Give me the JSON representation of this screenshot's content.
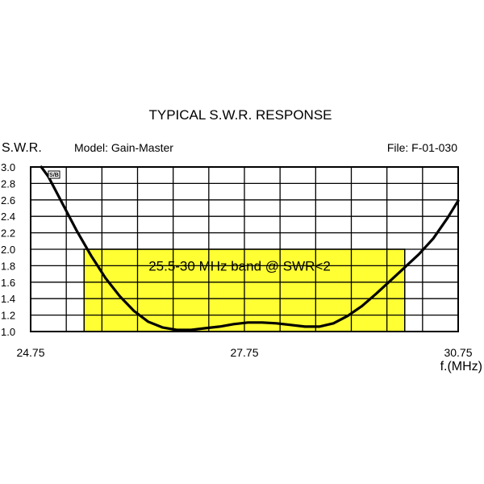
{
  "chart_data": {
    "type": "line",
    "title": "TYPICAL S.W.R. RESPONSE",
    "ylabel": "S.W.R.",
    "xlabel": "f.(MHz)",
    "model_label": "Model:  Gain-Master",
    "file_label": "File:  F-01-030",
    "logo_text": "S/B",
    "xlim": [
      24.75,
      30.75
    ],
    "ylim": [
      1.0,
      3.0
    ],
    "x_ticks": [
      "24.75",
      "27.75",
      "30.75"
    ],
    "y_ticks": [
      "1.0",
      "1.2",
      "1.4",
      "1.6",
      "1.8",
      "2.0",
      "2.2",
      "2.4",
      "2.6",
      "2.8",
      "3.0"
    ],
    "grid": true,
    "highlight": {
      "label": "25.5-30 MHz band @ SWR<2",
      "x_range": [
        25.5,
        30.0
      ],
      "y_range": [
        1.0,
        2.0
      ],
      "color": "#ffff33"
    },
    "series": [
      {
        "color": "#000000",
        "x": [
          24.9,
          25.0,
          25.2,
          25.4,
          25.6,
          25.8,
          26.0,
          26.2,
          26.4,
          26.6,
          26.8,
          27.0,
          27.2,
          27.4,
          27.6,
          27.8,
          28.0,
          28.2,
          28.4,
          28.6,
          28.8,
          29.0,
          29.2,
          29.4,
          29.6,
          29.8,
          30.0,
          30.2,
          30.4,
          30.6,
          30.75
        ],
        "y": [
          3.0,
          2.88,
          2.55,
          2.22,
          1.92,
          1.65,
          1.43,
          1.25,
          1.12,
          1.05,
          1.02,
          1.02,
          1.04,
          1.06,
          1.09,
          1.11,
          1.11,
          1.1,
          1.08,
          1.06,
          1.06,
          1.1,
          1.19,
          1.31,
          1.46,
          1.62,
          1.78,
          1.94,
          2.13,
          2.38,
          2.59
        ]
      }
    ]
  }
}
